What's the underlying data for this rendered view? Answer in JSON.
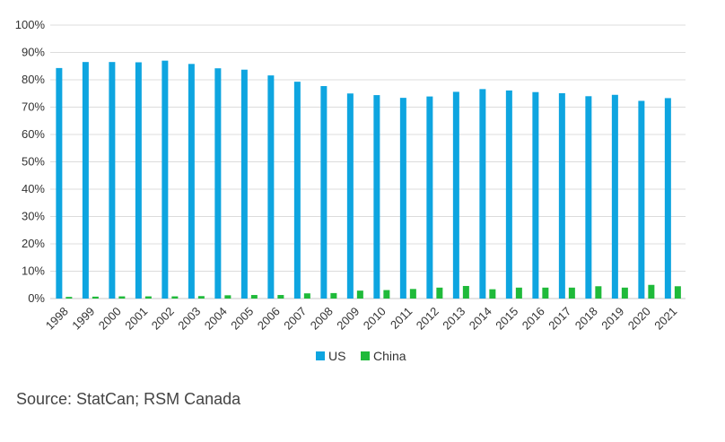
{
  "chart_data": {
    "type": "bar",
    "categories": [
      "1998",
      "1999",
      "2000",
      "2001",
      "2002",
      "2003",
      "2004",
      "2005",
      "2006",
      "2007",
      "2008",
      "2009",
      "2010",
      "2011",
      "2012",
      "2013",
      "2014",
      "2015",
      "2016",
      "2017",
      "2018",
      "2019",
      "2020",
      "2021"
    ],
    "series": [
      {
        "name": "US",
        "color": "#0ea5e0",
        "values": [
          84.3,
          86.5,
          86.5,
          86.4,
          87.0,
          85.8,
          84.2,
          83.7,
          81.6,
          79.3,
          77.7,
          75.0,
          74.4,
          73.4,
          73.9,
          75.6,
          76.6,
          76.1,
          75.5,
          75.1,
          74.0,
          74.5,
          72.3,
          73.3
        ]
      },
      {
        "name": "China",
        "color": "#1fba3a",
        "values": [
          0.6,
          0.7,
          0.8,
          0.8,
          0.8,
          0.9,
          1.2,
          1.3,
          1.3,
          1.9,
          2.0,
          2.9,
          3.1,
          3.5,
          4.0,
          4.6,
          3.4,
          4.0,
          4.0,
          4.0,
          4.5,
          4.0,
          5.0,
          4.5
        ]
      }
    ],
    "yticks": [
      "0%",
      "10%",
      "20%",
      "30%",
      "40%",
      "50%",
      "60%",
      "70%",
      "80%",
      "90%",
      "100%"
    ],
    "ylim": [
      0,
      100
    ],
    "grid": true,
    "legend": "bottom-center",
    "source": "Source: StatCan; RSM Canada"
  }
}
